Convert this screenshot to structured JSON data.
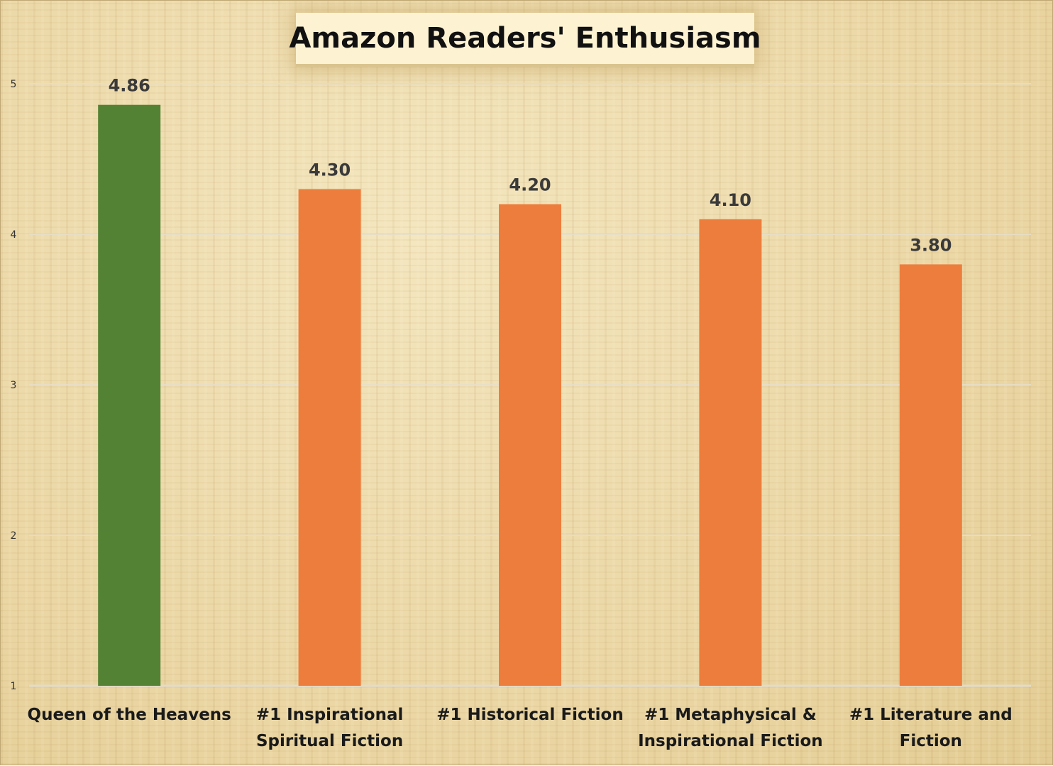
{
  "chart_data": {
    "type": "bar",
    "title": "Amazon Readers' Enthusiasm",
    "categories": [
      [
        "Queen of the Heavens"
      ],
      [
        "#1 Inspirational",
        "Spiritual Fiction"
      ],
      [
        "#1 Historical Fiction"
      ],
      [
        "#1 Metaphysical &",
        "Inspirational Fiction"
      ],
      [
        "#1 Literature and",
        "Fiction"
      ]
    ],
    "values": [
      4.86,
      4.3,
      4.2,
      4.1,
      3.8
    ],
    "value_labels": [
      "4.86",
      "4.30",
      "4.20",
      "4.10",
      "3.80"
    ],
    "bar_colors": [
      "#548235",
      "#ed7d3c",
      "#ed7d3c",
      "#ed7d3c",
      "#ed7d3c"
    ],
    "ylim": [
      1,
      5
    ],
    "yticks": [
      1,
      2,
      3,
      4,
      5
    ],
    "grid": true,
    "legend": "none",
    "xlabel": "",
    "ylabel": ""
  }
}
